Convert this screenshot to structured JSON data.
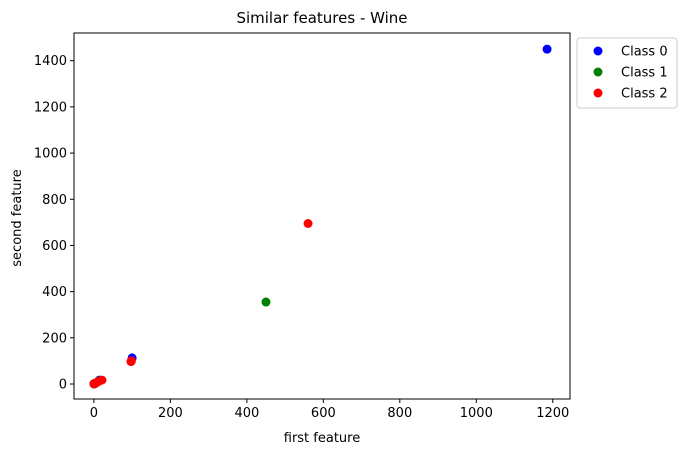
{
  "chart_data": {
    "type": "scatter",
    "title": "Similar features - Wine",
    "xlabel": "first feature",
    "ylabel": "second feature",
    "xlim": [
      -52,
      1245
    ],
    "ylim": [
      -65,
      1520
    ],
    "xticks": [
      0,
      200,
      400,
      600,
      800,
      1000,
      1200
    ],
    "yticks": [
      0,
      200,
      400,
      600,
      800,
      1000,
      1200,
      1400
    ],
    "grid": false,
    "legend_position": "outside-top-right",
    "series": [
      {
        "name": "Class 0",
        "color": "#0000ff",
        "points": [
          [
            1185,
            1450
          ],
          [
            100,
            113
          ],
          [
            14.2,
            16.5
          ],
          [
            13.5,
            15
          ],
          [
            3.5,
            2.8
          ],
          [
            2.4,
            3.1
          ],
          [
            1.2,
            0.9
          ],
          [
            0.3,
            0.5
          ]
        ]
      },
      {
        "name": "Class 1",
        "color": "#008000",
        "points": [
          [
            450,
            355
          ],
          [
            12.5,
            13.0
          ],
          [
            2.5,
            2.0
          ],
          [
            1.0,
            1.5
          ],
          [
            0.3,
            0.2
          ]
        ]
      },
      {
        "name": "Class 2",
        "color": "#ff0000",
        "points": [
          [
            560,
            695
          ],
          [
            97,
            97
          ],
          [
            98,
            100
          ],
          [
            21,
            17
          ],
          [
            13,
            12
          ],
          [
            8,
            7
          ],
          [
            5,
            4
          ],
          [
            2.5,
            2
          ],
          [
            1,
            1.5
          ],
          [
            0.5,
            0.3
          ]
        ]
      }
    ]
  }
}
